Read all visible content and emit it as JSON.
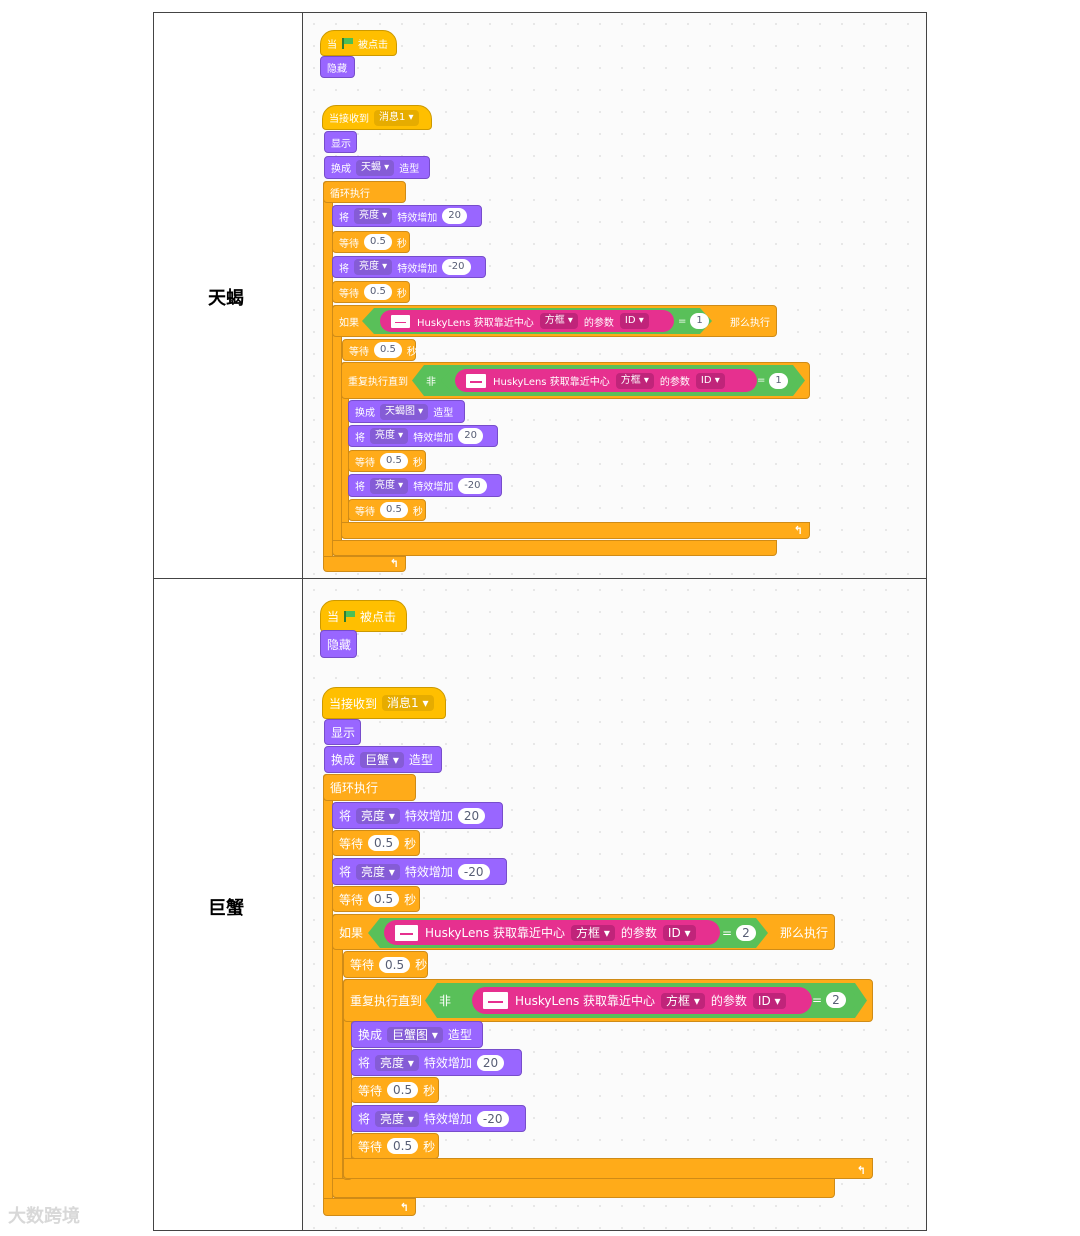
{
  "rows": [
    {
      "label": "天蝎",
      "hat_prefix": "当",
      "hat_suffix": "被点击",
      "hide": "隐藏",
      "receive_prefix": "当接收到",
      "receive_msg": "消息1",
      "show": "显示",
      "switch_prefix": "换成",
      "costume": "天蝎",
      "switch_suffix": "造型",
      "forever": "循环执行",
      "effect_prefix": "将",
      "effect_name": "亮度",
      "effect_mid": "特效增加",
      "val_pos": "20",
      "val_neg": "-20",
      "wait_prefix": "等待",
      "wait_val": "0.5",
      "wait_suffix": "秒",
      "if_prefix": "如果",
      "if_suffix": "那么执行",
      "husky_text": "HuskyLens 获取靠近中心",
      "husky_frame": "方框",
      "husky_param": "的参数",
      "husky_id": "ID",
      "eq": "=",
      "id_val": "1",
      "repeat_prefix": "重复执行直到",
      "not": "非",
      "costume2": "天蝎图",
      "loop_arrow": "↰"
    },
    {
      "label": "巨蟹",
      "hat_prefix": "当",
      "hat_suffix": "被点击",
      "hide": "隐藏",
      "receive_prefix": "当接收到",
      "receive_msg": "消息1",
      "show": "显示",
      "switch_prefix": "换成",
      "costume": "巨蟹",
      "switch_suffix": "造型",
      "forever": "循环执行",
      "effect_prefix": "将",
      "effect_name": "亮度",
      "effect_mid": "特效增加",
      "val_pos": "20",
      "val_neg": "-20",
      "wait_prefix": "等待",
      "wait_val": "0.5",
      "wait_suffix": "秒",
      "if_prefix": "如果",
      "if_suffix": "那么执行",
      "husky_text": "HuskyLens 获取靠近中心",
      "husky_frame": "方框",
      "husky_param": "的参数",
      "husky_id": "ID",
      "eq": "=",
      "id_val": "2",
      "repeat_prefix": "重复执行直到",
      "not": "非",
      "costume2": "巨蟹图",
      "loop_arrow": "↰"
    }
  ],
  "watermark": "大数跨境",
  "colors": {
    "event": "#ffbf00",
    "control": "#ffab19",
    "looks": "#9966ff",
    "operator": "#59c059",
    "husky": "#e6308f"
  }
}
